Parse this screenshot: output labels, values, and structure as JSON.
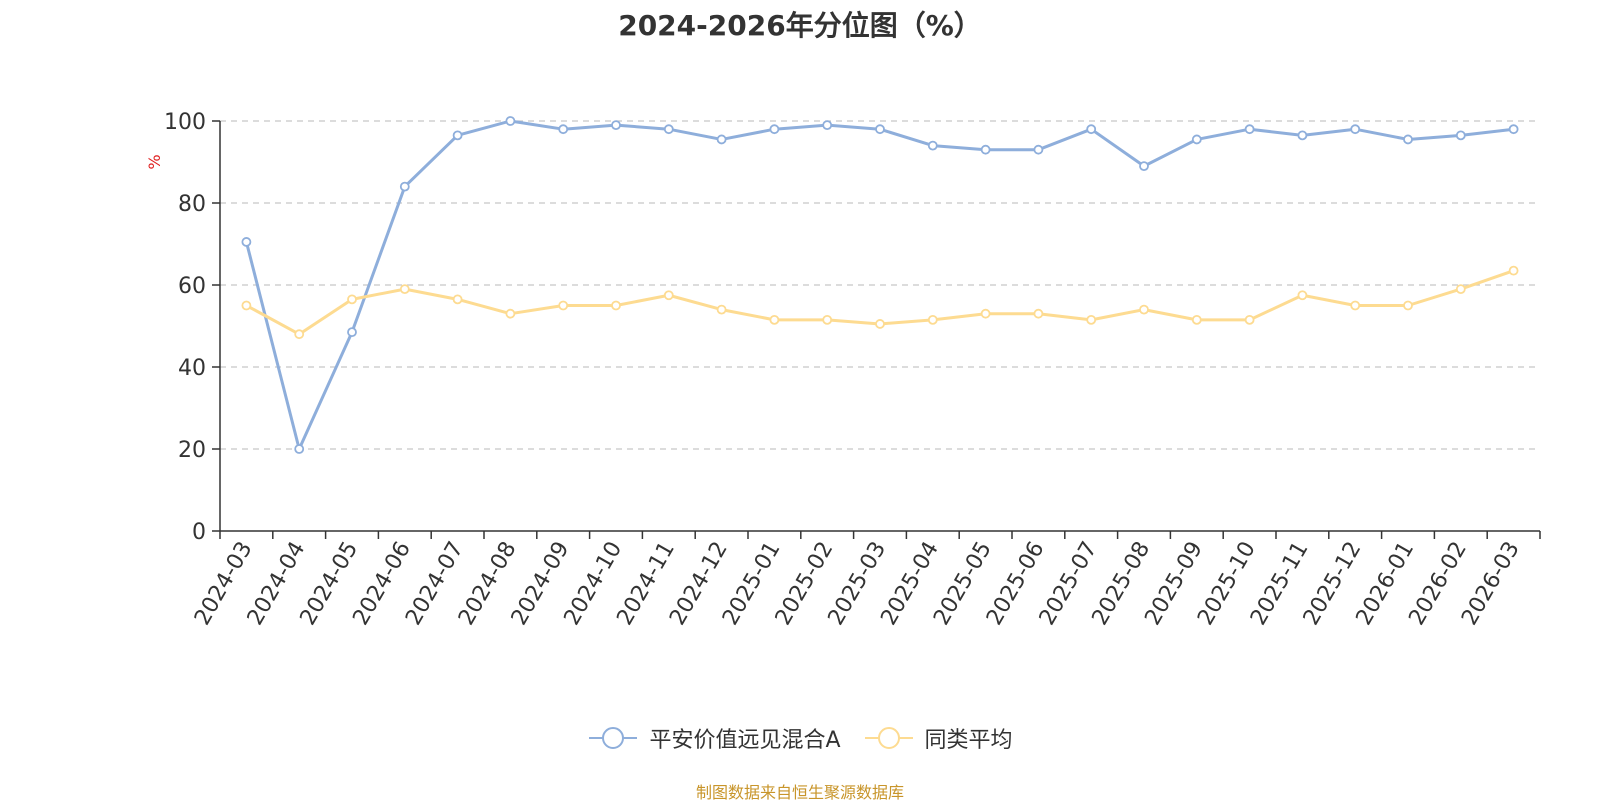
{
  "chart_data": {
    "type": "line",
    "title": "2024-2026年分位图（%）",
    "ylabel": "%",
    "xlabel": "",
    "ylim": [
      0,
      100
    ],
    "yticks": [
      0,
      20,
      40,
      60,
      80,
      100
    ],
    "grid": true,
    "legend_position": "bottom",
    "categories": [
      "2024-03",
      "2024-04",
      "2024-05",
      "2024-06",
      "2024-07",
      "2024-08",
      "2024-09",
      "2024-10",
      "2024-11",
      "2024-12",
      "2025-01",
      "2025-02",
      "2025-03",
      "2025-04",
      "2025-05",
      "2025-06",
      "2025-07",
      "2025-08",
      "2025-09",
      "2025-10",
      "2025-11",
      "2025-12",
      "2026-01",
      "2026-02",
      "2026-03"
    ],
    "series": [
      {
        "name": "平安价值远见混合A",
        "color": "#8eaedb",
        "values": [
          70.5,
          20,
          48.5,
          84,
          96.5,
          100,
          98,
          99,
          98,
          95.5,
          98,
          99,
          98,
          94,
          93,
          93,
          98,
          89,
          95.5,
          98,
          96.5,
          98,
          95.5,
          96.5,
          98
        ]
      },
      {
        "name": "同类平均",
        "color": "#fddb91",
        "values": [
          55,
          48,
          56.5,
          59,
          56.5,
          53,
          55,
          55,
          57.5,
          54,
          51.5,
          51.5,
          50.5,
          51.5,
          53,
          53,
          51.5,
          54,
          51.5,
          51.5,
          57.5,
          55,
          55,
          59,
          63.5
        ]
      }
    ]
  },
  "source_note": "制图数据来自恒生聚源数据库"
}
